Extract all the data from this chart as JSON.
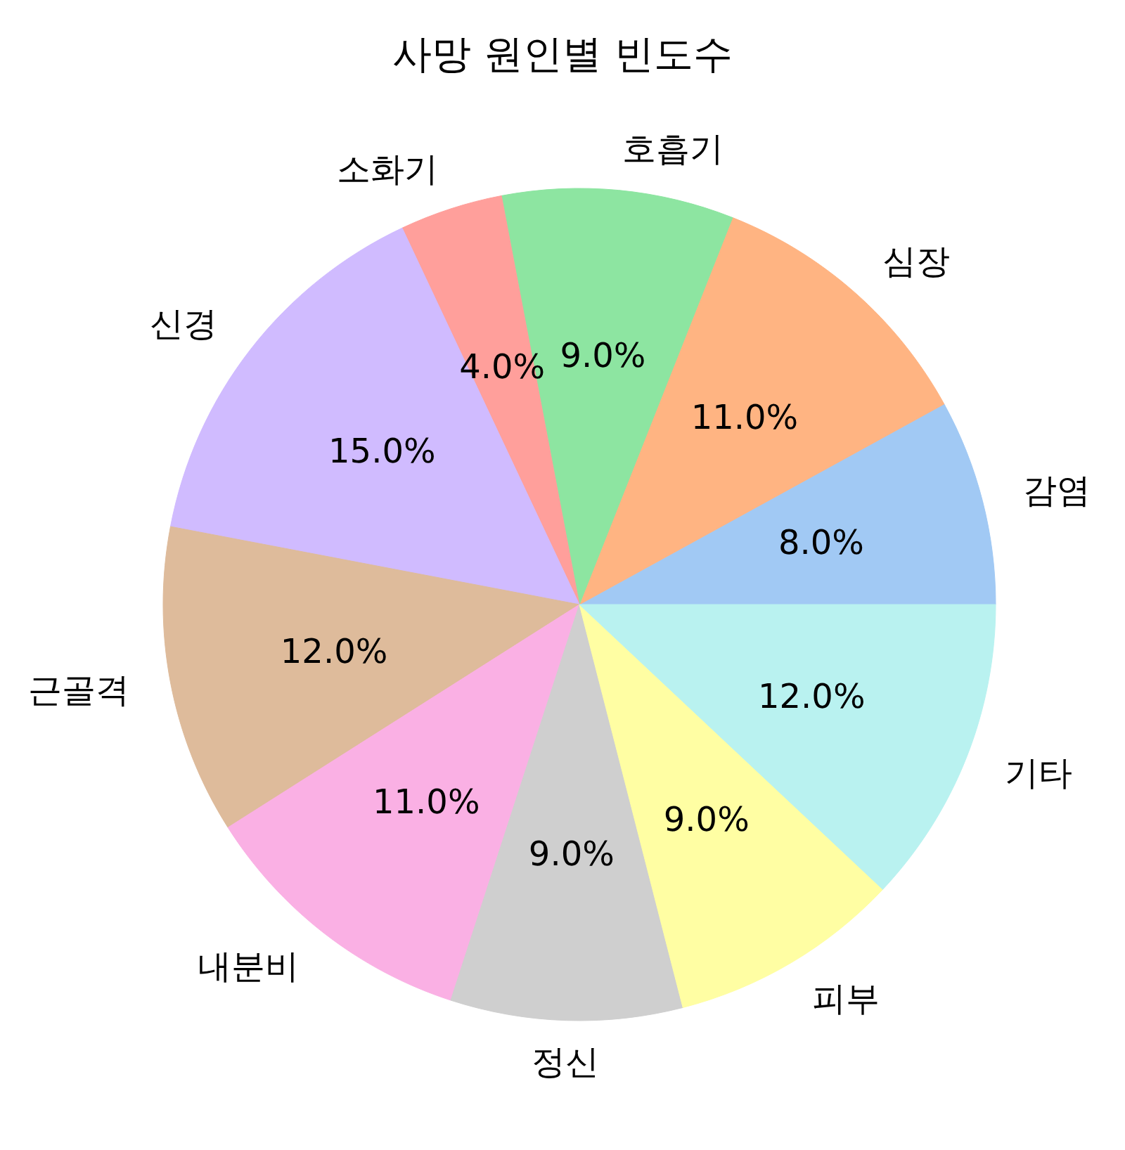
{
  "chart_data": {
    "type": "pie",
    "title": "사망 원인별 빈도수",
    "categories": [
      "감염",
      "심장",
      "호흡기",
      "소화기",
      "신경",
      "근골격",
      "내분비",
      "정신",
      "피부",
      "기타"
    ],
    "values": [
      8,
      11,
      9,
      4,
      15,
      12,
      11,
      9,
      9,
      12
    ],
    "colors": [
      "#a1c9f4",
      "#ffb482",
      "#8de5a1",
      "#ff9f9b",
      "#d0bbff",
      "#debb9b",
      "#fab0e4",
      "#cfcfcf",
      "#fffea3",
      "#b9f2f0"
    ],
    "value_labels": [
      "8.0%",
      "11.0%",
      "9.0%",
      "4.0%",
      "15.0%",
      "12.0%",
      "11.0%",
      "9.0%",
      "9.0%",
      "12.0%"
    ],
    "legend": false
  }
}
